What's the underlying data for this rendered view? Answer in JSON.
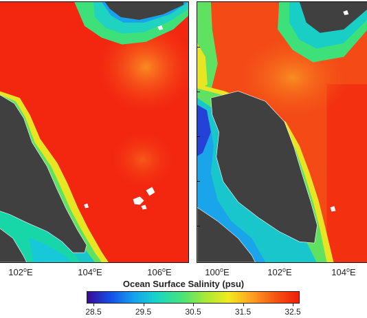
{
  "figure": {
    "colorbar": {
      "title": "Ocean Surface Salinity (psu)",
      "ticks": [
        "28.5",
        "29.5",
        "30.5",
        "31.5",
        "32.5"
      ],
      "range": [
        28.5,
        32.5
      ],
      "palette": [
        "#3a0a96",
        "#1450e6",
        "#16a3ee",
        "#1ad6c4",
        "#45e37a",
        "#a6e83a",
        "#f2ea1e",
        "#fca020",
        "#f65512",
        "#ef1d0b"
      ]
    },
    "left_panel": {
      "lon_labels": [
        "102",
        "104",
        "106"
      ],
      "deg_symbol": "o",
      "unit": "E",
      "dominant_color": "#f52a12",
      "land_color": "#404040"
    },
    "right_panel": {
      "lon_labels": [
        "100",
        "102",
        "104"
      ],
      "deg_symbol": "o",
      "unit": "E",
      "dominant_color": "#f4581a",
      "land_color": "#404040"
    }
  }
}
